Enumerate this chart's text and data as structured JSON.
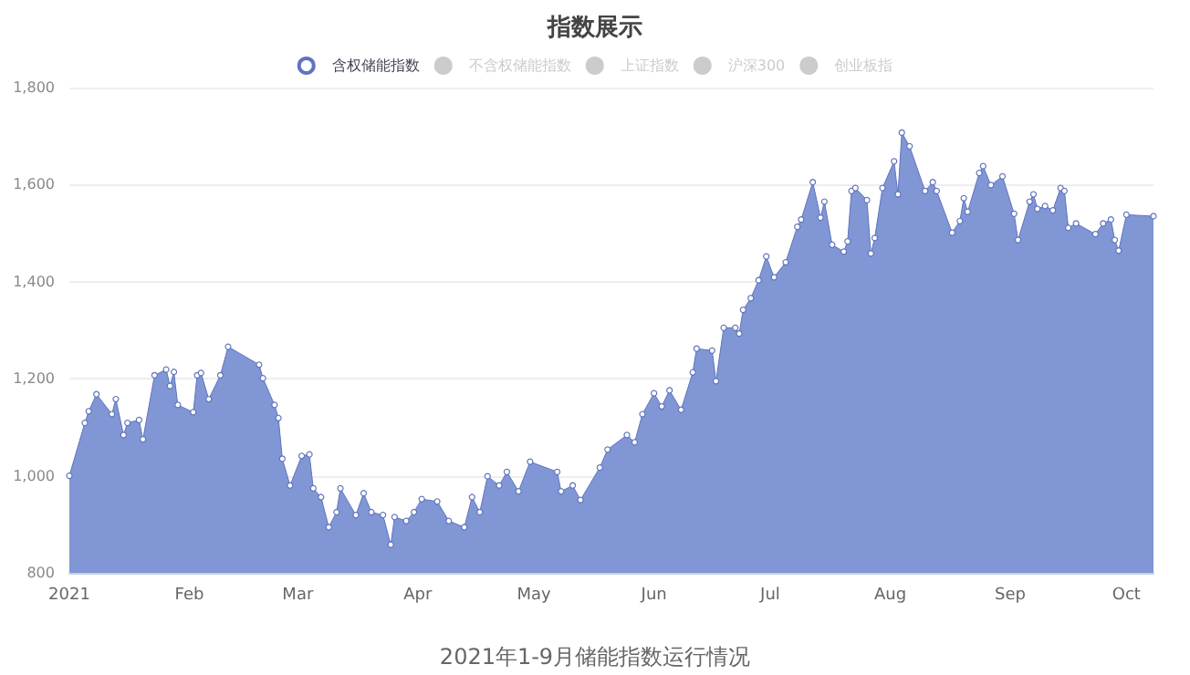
{
  "chart_data": {
    "type": "area",
    "title": "指数展示",
    "annotations": [
      "2021年1-9月储能指数运行情况"
    ],
    "x": [
      "2021-01-01",
      "2021-01-05",
      "2021-01-06",
      "2021-01-08",
      "2021-01-12",
      "2021-01-13",
      "2021-01-15",
      "2021-01-16",
      "2021-01-19",
      "2021-01-20",
      "2021-01-23",
      "2021-01-26",
      "2021-01-27",
      "2021-01-28",
      "2021-01-29",
      "2021-02-02",
      "2021-02-03",
      "2021-02-04",
      "2021-02-06",
      "2021-02-09",
      "2021-02-11",
      "2021-02-19",
      "2021-02-20",
      "2021-02-23",
      "2021-02-24",
      "2021-02-25",
      "2021-02-27",
      "2021-03-02",
      "2021-03-04",
      "2021-03-05",
      "2021-03-07",
      "2021-03-09",
      "2021-03-11",
      "2021-03-12",
      "2021-03-16",
      "2021-03-18",
      "2021-03-20",
      "2021-03-23",
      "2021-03-25",
      "2021-03-26",
      "2021-03-29",
      "2021-03-31",
      "2021-04-02",
      "2021-04-06",
      "2021-04-09",
      "2021-04-13",
      "2021-04-15",
      "2021-04-17",
      "2021-04-19",
      "2021-04-22",
      "2021-04-24",
      "2021-04-27",
      "2021-04-30",
      "2021-05-07",
      "2021-05-08",
      "2021-05-11",
      "2021-05-13",
      "2021-05-18",
      "2021-05-20",
      "2021-05-25",
      "2021-05-27",
      "2021-05-29",
      "2021-06-01",
      "2021-06-03",
      "2021-06-05",
      "2021-06-08",
      "2021-06-11",
      "2021-06-12",
      "2021-06-16",
      "2021-06-17",
      "2021-06-19",
      "2021-06-22",
      "2021-06-23",
      "2021-06-24",
      "2021-06-26",
      "2021-06-28",
      "2021-06-30",
      "2021-07-02",
      "2021-07-05",
      "2021-07-08",
      "2021-07-09",
      "2021-07-12",
      "2021-07-14",
      "2021-07-15",
      "2021-07-17",
      "2021-07-20",
      "2021-07-21",
      "2021-07-22",
      "2021-07-23",
      "2021-07-26",
      "2021-07-27",
      "2021-07-28",
      "2021-07-30",
      "2021-08-02",
      "2021-08-03",
      "2021-08-04",
      "2021-08-06",
      "2021-08-10",
      "2021-08-12",
      "2021-08-13",
      "2021-08-17",
      "2021-08-19",
      "2021-08-20",
      "2021-08-21",
      "2021-08-24",
      "2021-08-25",
      "2021-08-27",
      "2021-08-30",
      "2021-09-02",
      "2021-09-03",
      "2021-09-06",
      "2021-09-07",
      "2021-09-08",
      "2021-09-10",
      "2021-09-12",
      "2021-09-14",
      "2021-09-15",
      "2021-09-16",
      "2021-09-18",
      "2021-09-23",
      "2021-09-25",
      "2021-09-27",
      "2021-09-28",
      "2021-09-29",
      "2021-10-01",
      "2021-10-08"
    ],
    "series": [
      {
        "name": "含权储能指数",
        "color": "#8096d5",
        "values": [
          1000,
          1109,
          1133,
          1168,
          1127,
          1158,
          1084,
          1109,
          1115,
          1075,
          1207,
          1219,
          1185,
          1214,
          1146,
          1131,
          1207,
          1212,
          1158,
          1207,
          1266,
          1229,
          1201,
          1146,
          1119,
          1035,
          980,
          1041,
          1044,
          974,
          956,
          894,
          925,
          974,
          919,
          964,
          925,
          919,
          858,
          915,
          907,
          925,
          952,
          947,
          907,
          894,
          956,
          925,
          999,
          980,
          1008,
          968,
          1029,
          1008,
          968,
          980,
          950,
          1017,
          1054,
          1084,
          1069,
          1127,
          1170,
          1143,
          1176,
          1136,
          1213,
          1262,
          1258,
          1195,
          1305,
          1305,
          1293,
          1342,
          1366,
          1403,
          1452,
          1409,
          1440,
          1513,
          1528,
          1605,
          1532,
          1565,
          1476,
          1462,
          1483,
          1587,
          1593,
          1568,
          1458,
          1490,
          1593,
          1648,
          1580,
          1707,
          1679,
          1587,
          1605,
          1587,
          1501,
          1525,
          1572,
          1544,
          1624,
          1638,
          1599,
          1617,
          1540,
          1486,
          1565,
          1580,
          1550,
          1556,
          1547,
          1593,
          1587,
          1511,
          1520,
          1498,
          1520,
          1528,
          1486,
          1464,
          1538,
          1535
        ]
      },
      {
        "name": "不含权储能指数",
        "values": [
          null,
          null,
          null,
          null,
          null,
          null,
          null,
          null,
          null,
          null,
          null,
          null,
          null,
          null,
          null,
          null,
          null,
          null,
          null,
          null,
          null,
          null,
          null,
          null,
          null,
          null,
          null,
          null,
          null,
          null,
          null,
          null,
          null,
          null,
          null,
          null,
          null,
          null,
          null,
          null,
          null,
          null,
          null,
          null,
          null,
          null,
          null,
          null,
          null,
          null,
          null,
          null,
          null,
          null,
          null,
          null,
          null,
          null,
          null,
          null,
          null,
          null,
          null,
          null,
          null,
          null,
          null,
          null,
          null,
          null,
          null,
          null,
          null,
          null,
          null,
          null,
          null,
          null,
          null,
          null,
          null,
          null,
          null,
          null,
          null,
          null,
          null,
          null,
          null,
          null,
          null,
          null,
          null,
          null,
          null,
          null,
          null,
          null,
          null,
          null,
          null,
          null,
          null,
          null,
          null,
          null,
          null,
          null,
          null,
          null,
          null,
          null,
          null,
          null,
          null,
          null,
          null,
          null,
          null,
          null,
          null,
          null,
          null,
          null,
          null,
          null
        ]
      },
      {
        "name": "上证指数",
        "values": [
          null,
          null,
          null,
          null,
          null,
          null,
          null,
          null,
          null,
          null,
          null,
          null,
          null,
          null,
          null,
          null,
          null,
          null,
          null,
          null,
          null,
          null,
          null,
          null,
          null,
          null,
          null,
          null,
          null,
          null,
          null,
          null,
          null,
          null,
          null,
          null,
          null,
          null,
          null,
          null,
          null,
          null,
          null,
          null,
          null,
          null,
          null,
          null,
          null,
          null,
          null,
          null,
          null,
          null,
          null,
          null,
          null,
          null,
          null,
          null,
          null,
          null,
          null,
          null,
          null,
          null,
          null,
          null,
          null,
          null,
          null,
          null,
          null,
          null,
          null,
          null,
          null,
          null,
          null,
          null,
          null,
          null,
          null,
          null,
          null,
          null,
          null,
          null,
          null,
          null,
          null,
          null,
          null,
          null,
          null,
          null,
          null,
          null,
          null,
          null,
          null,
          null,
          null,
          null,
          null,
          null,
          null,
          null,
          null,
          null,
          null,
          null,
          null,
          null,
          null,
          null,
          null,
          null,
          null,
          null,
          null,
          null,
          null,
          null,
          null,
          null
        ]
      },
      {
        "name": "沪深300",
        "values": [
          null,
          null,
          null,
          null,
          null,
          null,
          null,
          null,
          null,
          null,
          null,
          null,
          null,
          null,
          null,
          null,
          null,
          null,
          null,
          null,
          null,
          null,
          null,
          null,
          null,
          null,
          null,
          null,
          null,
          null,
          null,
          null,
          null,
          null,
          null,
          null,
          null,
          null,
          null,
          null,
          null,
          null,
          null,
          null,
          null,
          null,
          null,
          null,
          null,
          null,
          null,
          null,
          null,
          null,
          null,
          null,
          null,
          null,
          null,
          null,
          null,
          null,
          null,
          null,
          null,
          null,
          null,
          null,
          null,
          null,
          null,
          null,
          null,
          null,
          null,
          null,
          null,
          null,
          null,
          null,
          null,
          null,
          null,
          null,
          null,
          null,
          null,
          null,
          null,
          null,
          null,
          null,
          null,
          null,
          null,
          null,
          null,
          null,
          null,
          null,
          null,
          null,
          null,
          null,
          null,
          null,
          null,
          null,
          null,
          null,
          null,
          null,
          null,
          null,
          null,
          null,
          null,
          null,
          null,
          null,
          null,
          null,
          null,
          null,
          null,
          null
        ]
      },
      {
        "name": "创业板指",
        "values": [
          null,
          null,
          null,
          null,
          null,
          null,
          null,
          null,
          null,
          null,
          null,
          null,
          null,
          null,
          null,
          null,
          null,
          null,
          null,
          null,
          null,
          null,
          null,
          null,
          null,
          null,
          null,
          null,
          null,
          null,
          null,
          null,
          null,
          null,
          null,
          null,
          null,
          null,
          null,
          null,
          null,
          null,
          null,
          null,
          null,
          null,
          null,
          null,
          null,
          null,
          null,
          null,
          null,
          null,
          null,
          null,
          null,
          null,
          null,
          null,
          null,
          null,
          null,
          null,
          null,
          null,
          null,
          null,
          null,
          null,
          null,
          null,
          null,
          null,
          null,
          null,
          null,
          null,
          null,
          null,
          null,
          null,
          null,
          null,
          null,
          null,
          null,
          null,
          null,
          null,
          null,
          null,
          null,
          null,
          null,
          null,
          null,
          null,
          null,
          null,
          null,
          null,
          null,
          null,
          null,
          null,
          null,
          null,
          null,
          null,
          null,
          null,
          null,
          null,
          null,
          null,
          null,
          null,
          null,
          null,
          null,
          null,
          null,
          null,
          null,
          null
        ]
      }
    ],
    "xlim": [
      "2021-01-01",
      "2021-10-08"
    ],
    "xticks": [
      {
        "value": "2021-01-01",
        "label": "2021"
      },
      {
        "value": "2021-02-01",
        "label": "Feb"
      },
      {
        "value": "2021-03-01",
        "label": "Mar"
      },
      {
        "value": "2021-04-01",
        "label": "Apr"
      },
      {
        "value": "2021-05-01",
        "label": "May"
      },
      {
        "value": "2021-06-01",
        "label": "Jun"
      },
      {
        "value": "2021-07-01",
        "label": "Jul"
      },
      {
        "value": "2021-08-01",
        "label": "Aug"
      },
      {
        "value": "2021-09-01",
        "label": "Sep"
      },
      {
        "value": "2021-10-01",
        "label": "Oct"
      }
    ],
    "ylim": [
      800,
      1800
    ],
    "yticks": [
      800,
      {
        "value": 1000,
        "label": "1,000"
      },
      {
        "value": 1200,
        "label": "1,200"
      },
      {
        "value": 1400,
        "label": "1,400"
      },
      {
        "value": 1600,
        "label": "1,600"
      },
      {
        "value": 1800,
        "label": "1,800"
      }
    ],
    "grid": "y",
    "legend": "top",
    "marker": "circle"
  }
}
